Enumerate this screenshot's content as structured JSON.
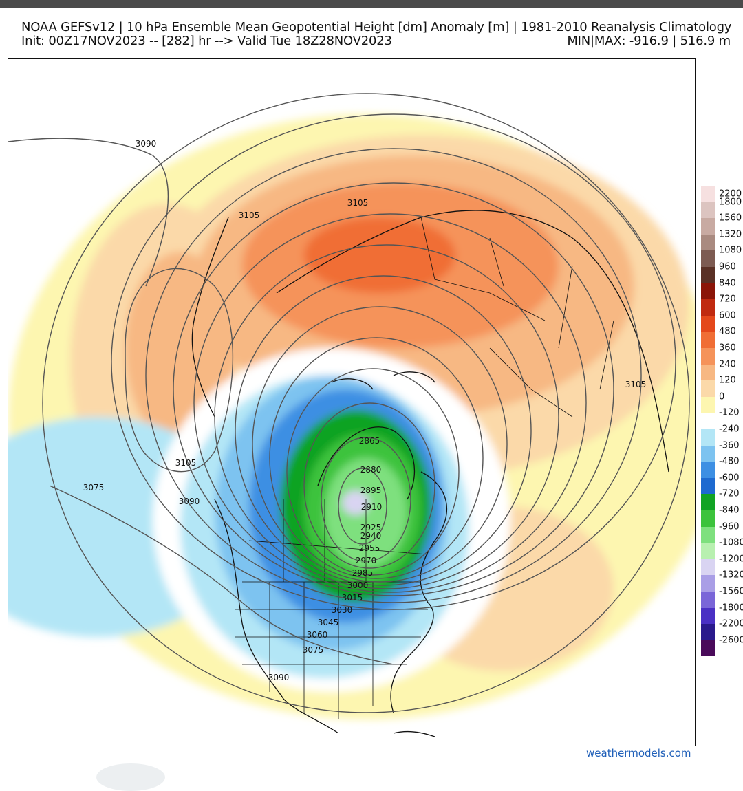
{
  "header": {
    "title_line1": "NOAA GEFSv12 | 10 hPa Ensemble Mean Geopotential Height [dm] Anomaly [m] | 1981-2010 Reanalysis Climatology",
    "title_line2": "Init: 00Z17NOV2023 -- [282] hr --> Valid Tue 18Z28NOV2023",
    "minmax": "MIN|MAX: -916.9 | 516.9 m"
  },
  "legend": {
    "entries": [
      {
        "label": "2200",
        "color": "#f6e0e0"
      },
      {
        "label": "1800",
        "color": "#dcc4c0"
      },
      {
        "label": "1560",
        "color": "#c8aaa2"
      },
      {
        "label": "1320",
        "color": "#a98a80"
      },
      {
        "label": "1080",
        "color": "#7d5b52"
      },
      {
        "label": "960",
        "color": "#5a3025"
      },
      {
        "label": "840",
        "color": "#8b1508"
      },
      {
        "label": "720",
        "color": "#c02a10"
      },
      {
        "label": "600",
        "color": "#e4481b"
      },
      {
        "label": "480",
        "color": "#f06e35"
      },
      {
        "label": "360",
        "color": "#f5935a"
      },
      {
        "label": "240",
        "color": "#f7b883"
      },
      {
        "label": "120",
        "color": "#fbd9a9"
      },
      {
        "label": "0",
        "color": "#fdf6b0"
      },
      {
        "label": "-120",
        "color": "#ffffff"
      },
      {
        "label": "-240",
        "color": "#b3e6f6"
      },
      {
        "label": "-360",
        "color": "#7dc3f0"
      },
      {
        "label": "-480",
        "color": "#3d8fe3"
      },
      {
        "label": "-600",
        "color": "#1e6ad0"
      },
      {
        "label": "-720",
        "color": "#11a324"
      },
      {
        "label": "-840",
        "color": "#3cc33c"
      },
      {
        "label": "-960",
        "color": "#7ee07e"
      },
      {
        "label": "-1080",
        "color": "#b8f0b0"
      },
      {
        "label": "-1200",
        "color": "#d9d4f2"
      },
      {
        "label": "-1320",
        "color": "#a99ee6"
      },
      {
        "label": "-1560",
        "color": "#7a66d8"
      },
      {
        "label": "-1800",
        "color": "#4a30c4"
      },
      {
        "label": "-2200",
        "color": "#2a1a8c"
      },
      {
        "label": "-2600",
        "color": "#4a0a5a"
      }
    ],
    "extra_colors": [
      "#8a1a8a",
      "#c21ec2",
      "#e04fd8",
      "#f27ef0"
    ]
  },
  "contours": {
    "labels": [
      "3090",
      "3105",
      "3105",
      "3105",
      "3105",
      "3075",
      "3090",
      "2865",
      "2880",
      "2895",
      "2910",
      "2925",
      "2940",
      "2955",
      "2970",
      "2985",
      "3000",
      "3015",
      "3030",
      "3045",
      "3060",
      "3075",
      "3090"
    ]
  },
  "credit": "weathermodels.com"
}
